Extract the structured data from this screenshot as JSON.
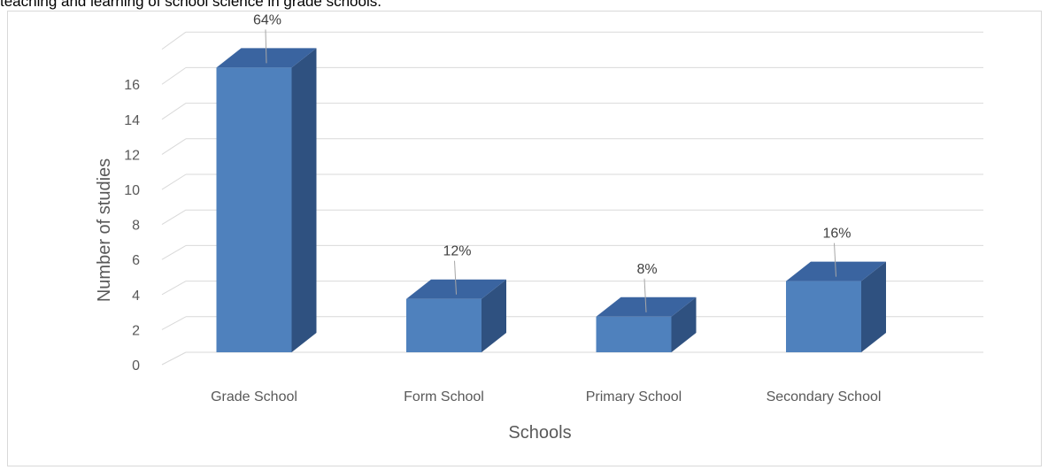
{
  "caption": "teaching and learning of school science in grade schools.",
  "chart_data": {
    "type": "bar",
    "style": "3d-column",
    "categories": [
      "Grade School",
      "Form School",
      "Primary School",
      "Secondary School"
    ],
    "values": [
      16,
      3,
      2,
      4
    ],
    "data_labels": [
      "64%",
      "12%",
      "8%",
      "16%"
    ],
    "xlabel": "Schools",
    "ylabel": "Number of studies",
    "ylim": [
      0,
      16
    ],
    "yticks": [
      0,
      2,
      4,
      6,
      8,
      10,
      12,
      14,
      16
    ],
    "grid": true,
    "legend": "none",
    "colors": {
      "front": "#4f81bd",
      "side": "#2f5180",
      "top": "#3a64a0",
      "grid": "#d9d9d9"
    }
  }
}
